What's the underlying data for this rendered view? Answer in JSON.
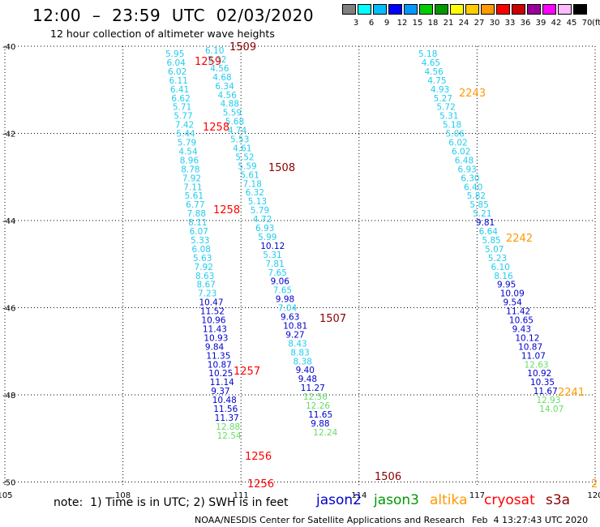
{
  "header": {
    "title": "12:00  –  23:59  UTC  02/03/2020",
    "subtitle": "12 hour collection of altimeter wave heights"
  },
  "legend": {
    "colors": [
      "#808080",
      "#00ffff",
      "#00bfff",
      "#0000ff",
      "#0099ff",
      "#00cc00",
      "#009900",
      "#ffff00",
      "#ffcc00",
      "#ff9900",
      "#ff0000",
      "#cc0000",
      "#990099",
      "#ff00ff",
      "#ffbbff",
      "#000000"
    ],
    "labels": [
      "3",
      "6",
      "9",
      "12",
      "15",
      "18",
      "21",
      "24",
      "27",
      "30",
      "33",
      "36",
      "39",
      "42",
      "45",
      "70"
    ],
    "unit": "(ft)"
  },
  "map": {
    "x_ticks": [
      "105",
      "108",
      "111",
      "114",
      "117",
      "120"
    ],
    "y_ticks": [
      "-40",
      "-42",
      "-44",
      "-46",
      "-48",
      "-50"
    ],
    "tracks": [
      {
        "satellite": "jason2",
        "values": [
          {
            "v": "5.95",
            "c": "#22ccee"
          },
          {
            "v": "6.04",
            "c": "#22ccee"
          },
          {
            "v": "6.02",
            "c": "#22ccee"
          },
          {
            "v": "6.11",
            "c": "#22ccee"
          },
          {
            "v": "6.41",
            "c": "#22ccee"
          },
          {
            "v": "6.62",
            "c": "#22ccee"
          },
          {
            "v": "5.71",
            "c": "#22ccee"
          },
          {
            "v": "5.77",
            "c": "#22ccee"
          },
          {
            "v": "7.42",
            "c": "#22ccee"
          },
          {
            "v": "5.44",
            "c": "#22ccee"
          },
          {
            "v": "5.79",
            "c": "#22ccee"
          },
          {
            "v": "4.54",
            "c": "#22ccee"
          },
          {
            "v": "8.96",
            "c": "#22ccee"
          },
          {
            "v": "8.78",
            "c": "#22ccee"
          },
          {
            "v": "7.92",
            "c": "#22ccee"
          },
          {
            "v": "7.11",
            "c": "#22ccee"
          },
          {
            "v": "5.61",
            "c": "#22ccee"
          },
          {
            "v": "6.77",
            "c": "#22ccee"
          },
          {
            "v": "7.88",
            "c": "#22ccee"
          },
          {
            "v": "8.11",
            "c": "#22ccee"
          },
          {
            "v": "6.07",
            "c": "#22ccee"
          },
          {
            "v": "5.33",
            "c": "#22ccee"
          },
          {
            "v": "6.08",
            "c": "#22ccee"
          },
          {
            "v": "5.63",
            "c": "#22ccee"
          },
          {
            "v": "7.92",
            "c": "#22ccee"
          },
          {
            "v": "8.63",
            "c": "#22ccee"
          },
          {
            "v": "8.67",
            "c": "#22ccee"
          },
          {
            "v": "7.23",
            "c": "#22ccee"
          },
          {
            "v": "10.47",
            "c": "#0000cc"
          },
          {
            "v": "11.52",
            "c": "#0000cc"
          },
          {
            "v": "10.96",
            "c": "#0000cc"
          },
          {
            "v": "11.43",
            "c": "#0000cc"
          },
          {
            "v": "10.93",
            "c": "#0000cc"
          },
          {
            "v": "9.84",
            "c": "#0000cc"
          },
          {
            "v": "11.35",
            "c": "#0000cc"
          },
          {
            "v": "10.87",
            "c": "#0000cc"
          },
          {
            "v": "10.25",
            "c": "#0000cc"
          },
          {
            "v": "11.14",
            "c": "#0000cc"
          },
          {
            "v": "9.37",
            "c": "#0000cc"
          },
          {
            "v": "10.48",
            "c": "#0000cc"
          },
          {
            "v": "11.56",
            "c": "#0000cc"
          },
          {
            "v": "11.37",
            "c": "#0000cc"
          },
          {
            "v": "12.88",
            "c": "#66dd66"
          },
          {
            "v": "12.54",
            "c": "#66dd66"
          }
        ]
      },
      {
        "satellite": "jason2",
        "values": [
          {
            "v": "6.10",
            "c": "#22ccee"
          },
          {
            "v": "5.32",
            "c": "#22ccee"
          },
          {
            "v": "4.56",
            "c": "#22ccee"
          },
          {
            "v": "4.68",
            "c": "#22ccee"
          },
          {
            "v": "6.34",
            "c": "#22ccee"
          },
          {
            "v": "4.56",
            "c": "#22ccee"
          },
          {
            "v": "4.88",
            "c": "#22ccee"
          },
          {
            "v": "5.59",
            "c": "#22ccee"
          },
          {
            "v": "5.68",
            "c": "#22ccee"
          },
          {
            "v": "4.74",
            "c": "#22ccee"
          },
          {
            "v": "5.53",
            "c": "#22ccee"
          },
          {
            "v": "4.61",
            "c": "#22ccee"
          },
          {
            "v": "5.52",
            "c": "#22ccee"
          },
          {
            "v": "5.59",
            "c": "#22ccee"
          },
          {
            "v": "5.61",
            "c": "#22ccee"
          },
          {
            "v": "7.18",
            "c": "#22ccee"
          },
          {
            "v": "6.32",
            "c": "#22ccee"
          },
          {
            "v": "5.13",
            "c": "#22ccee"
          },
          {
            "v": "5.79",
            "c": "#22ccee"
          },
          {
            "v": "4.72",
            "c": "#22ccee"
          },
          {
            "v": "6.93",
            "c": "#22ccee"
          },
          {
            "v": "5.99",
            "c": "#22ccee"
          },
          {
            "v": "10.12",
            "c": "#0000cc"
          },
          {
            "v": "5.31",
            "c": "#22ccee"
          },
          {
            "v": "7.81",
            "c": "#22ccee"
          },
          {
            "v": "7.65",
            "c": "#22ccee"
          },
          {
            "v": "9.06",
            "c": "#0000cc"
          },
          {
            "v": "7.65",
            "c": "#22ccee"
          },
          {
            "v": "9.98",
            "c": "#0000cc"
          },
          {
            "v": "7.04",
            "c": "#22ccee"
          },
          {
            "v": "9.63",
            "c": "#0000cc"
          },
          {
            "v": "10.81",
            "c": "#0000cc"
          },
          {
            "v": "9.27",
            "c": "#0000cc"
          },
          {
            "v": "8.43",
            "c": "#22ccee"
          },
          {
            "v": "8.83",
            "c": "#22ccee"
          },
          {
            "v": "8.38",
            "c": "#22ccee"
          },
          {
            "v": "9.40",
            "c": "#0000cc"
          },
          {
            "v": "9.48",
            "c": "#0000cc"
          },
          {
            "v": "11.27",
            "c": "#0000cc"
          },
          {
            "v": "12.56",
            "c": "#66dd66"
          },
          {
            "v": "12.26",
            "c": "#66dd66"
          },
          {
            "v": "11.65",
            "c": "#0000cc"
          },
          {
            "v": "9.88",
            "c": "#0000cc"
          },
          {
            "v": "12.24",
            "c": "#66dd66"
          }
        ]
      },
      {
        "satellite": "altika",
        "values": [
          {
            "v": "5.18",
            "c": "#22ccee"
          },
          {
            "v": "4.65",
            "c": "#22ccee"
          },
          {
            "v": "4.56",
            "c": "#22ccee"
          },
          {
            "v": "4.75",
            "c": "#22ccee"
          },
          {
            "v": "4.93",
            "c": "#22ccee"
          },
          {
            "v": "5.27",
            "c": "#22ccee"
          },
          {
            "v": "5.72",
            "c": "#22ccee"
          },
          {
            "v": "5.31",
            "c": "#22ccee"
          },
          {
            "v": "5.18",
            "c": "#22ccee"
          },
          {
            "v": "5.06",
            "c": "#22ccee"
          },
          {
            "v": "6.02",
            "c": "#22ccee"
          },
          {
            "v": "6.02",
            "c": "#22ccee"
          },
          {
            "v": "6.48",
            "c": "#22ccee"
          },
          {
            "v": "6.93",
            "c": "#22ccee"
          },
          {
            "v": "6.30",
            "c": "#22ccee"
          },
          {
            "v": "6.40",
            "c": "#22ccee"
          },
          {
            "v": "5.82",
            "c": "#22ccee"
          },
          {
            "v": "5.85",
            "c": "#22ccee"
          },
          {
            "v": "5.21",
            "c": "#22ccee"
          },
          {
            "v": "9.81",
            "c": "#0000cc"
          },
          {
            "v": "6.64",
            "c": "#22ccee"
          },
          {
            "v": "5.85",
            "c": "#22ccee"
          },
          {
            "v": "5.07",
            "c": "#22ccee"
          },
          {
            "v": "5.23",
            "c": "#22ccee"
          },
          {
            "v": "6.10",
            "c": "#22ccee"
          },
          {
            "v": "8.16",
            "c": "#22ccee"
          },
          {
            "v": "9.95",
            "c": "#0000cc"
          },
          {
            "v": "10.09",
            "c": "#0000cc"
          },
          {
            "v": "9.54",
            "c": "#0000cc"
          },
          {
            "v": "11.42",
            "c": "#0000cc"
          },
          {
            "v": "10.65",
            "c": "#0000cc"
          },
          {
            "v": "9.43",
            "c": "#0000cc"
          },
          {
            "v": "10.12",
            "c": "#0000cc"
          },
          {
            "v": "10.87",
            "c": "#0000cc"
          },
          {
            "v": "11.07",
            "c": "#0000cc"
          },
          {
            "v": "12.63",
            "c": "#66dd66"
          },
          {
            "v": "10.92",
            "c": "#0000cc"
          },
          {
            "v": "10.35",
            "c": "#0000cc"
          },
          {
            "v": "11.67",
            "c": "#0000cc"
          },
          {
            "v": "12.93",
            "c": "#66dd66"
          },
          {
            "v": "14.07",
            "c": "#66dd66"
          }
        ]
      }
    ],
    "time_labels": [
      {
        "t": "1509",
        "c": "#8b0000"
      },
      {
        "t": "1259",
        "c": "#ff0000"
      },
      {
        "t": "1258",
        "c": "#ff0000"
      },
      {
        "t": "1508",
        "c": "#8b0000"
      },
      {
        "t": "1258",
        "c": "#ff0000"
      },
      {
        "t": "1507",
        "c": "#8b0000"
      },
      {
        "t": "1257",
        "c": "#ff0000"
      },
      {
        "t": "1256",
        "c": "#ff0000"
      },
      {
        "t": "1256",
        "c": "#ff0000"
      },
      {
        "t": "1506",
        "c": "#8b0000"
      },
      {
        "t": "2243",
        "c": "#ff9900"
      },
      {
        "t": "2242",
        "c": "#ff9900"
      },
      {
        "t": "2241",
        "c": "#ff9900"
      },
      {
        "t": "2",
        "c": "#ff9900"
      }
    ]
  },
  "footer": {
    "note": "note:  1) Time is in UTC; 2) SWH is in feet",
    "satellites": [
      {
        "name": "jason2",
        "color": "#0000cc"
      },
      {
        "name": "jason3",
        "color": "#009900"
      },
      {
        "name": "altika",
        "color": "#ff9900"
      },
      {
        "name": "cryosat",
        "color": "#ff0000"
      },
      {
        "name": "s3a",
        "color": "#8b0000"
      }
    ],
    "credit": "NOAA/NESDIS Center for Satellite Applications and Research",
    "timestamp": "Feb  4 13:27:43 UTC 2020"
  }
}
